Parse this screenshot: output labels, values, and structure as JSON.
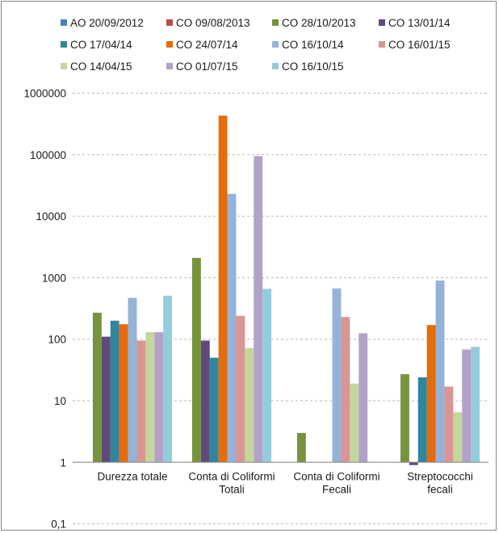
{
  "chart_data": {
    "type": "bar",
    "y_scale": "log",
    "ylim": [
      0.1,
      1000000
    ],
    "grid": "horizontal dashed",
    "legend_position": "top",
    "y_ticks": [
      "1000000",
      "100000",
      "10000",
      "1000",
      "100",
      "10",
      "1",
      "0,1"
    ],
    "categories": [
      [
        "Durezza totale"
      ],
      [
        "Conta di Coliformi",
        "Totali"
      ],
      [
        "Conta di Coliformi",
        "Fecali"
      ],
      [
        "Streptococchi",
        "fecali"
      ]
    ],
    "series": [
      {
        "name": "AO 20/09/2012",
        "color": "#4a7ebb",
        "values": [
          null,
          null,
          null,
          null
        ]
      },
      {
        "name": "CO 09/08/2013",
        "color": "#be4b48",
        "values": [
          null,
          null,
          null,
          null
        ]
      },
      {
        "name": "CO 28/10/2013",
        "color": "#77933c",
        "values": [
          270,
          2100,
          3,
          27
        ]
      },
      {
        "name": "CO 13/01/14",
        "color": "#604a7b",
        "values": [
          110,
          95,
          null,
          0.9
        ]
      },
      {
        "name": "CO 17/04/14",
        "color": "#31859c",
        "values": [
          200,
          50,
          null,
          24
        ]
      },
      {
        "name": "CO 24/07/14",
        "color": "#e46c0a",
        "values": [
          175,
          430000,
          null,
          170
        ]
      },
      {
        "name": "CO 16/10/14",
        "color": "#95b3d7",
        "values": [
          470,
          23000,
          670,
          900
        ]
      },
      {
        "name": "CO 16/01/15",
        "color": "#d99694",
        "values": [
          95,
          240,
          230,
          17
        ]
      },
      {
        "name": "CO 14/04/15",
        "color": "#c3d69b",
        "values": [
          130,
          72,
          19,
          6.5
        ]
      },
      {
        "name": "CO 01/07/15",
        "color": "#b3a2c7",
        "values": [
          130,
          95000,
          125,
          68
        ]
      },
      {
        "name": "CO 16/10/15",
        "color": "#93cddd",
        "values": [
          510,
          660,
          null,
          75
        ]
      }
    ]
  }
}
